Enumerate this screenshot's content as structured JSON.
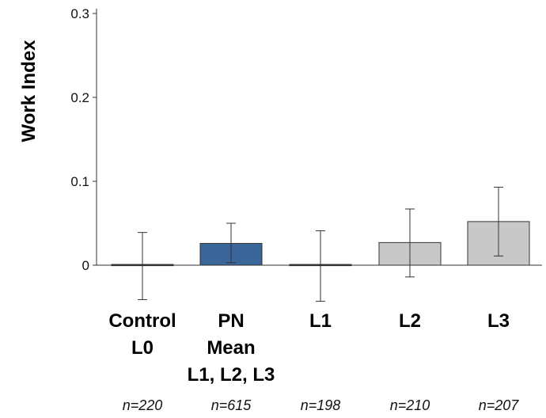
{
  "chart_data": {
    "type": "bar",
    "title": "",
    "xlabel": "",
    "ylabel": "Work Index",
    "ylim": [
      0,
      0.3
    ],
    "yticks": [
      0,
      0.1,
      0.2,
      0.3
    ],
    "ytick_labels": [
      "0",
      "0.1",
      "0.2",
      "0.3"
    ],
    "grid": false,
    "categories": [
      {
        "lines": [
          "Control",
          "L0"
        ],
        "n": "n=220"
      },
      {
        "lines": [
          "PN",
          "Mean",
          "L1, L2, L3"
        ],
        "n": "n=615"
      },
      {
        "lines": [
          "L1"
        ],
        "n": "n=198"
      },
      {
        "lines": [
          "L2"
        ],
        "n": "n=210"
      },
      {
        "lines": [
          "L3"
        ],
        "n": "n=207"
      }
    ],
    "values": [
      0.0,
      0.026,
      0.0,
      0.027,
      0.052
    ],
    "error_low": [
      -0.041,
      0.003,
      -0.043,
      -0.014,
      0.011
    ],
    "error_high": [
      0.039,
      0.05,
      0.041,
      0.067,
      0.093
    ],
    "bar_colors": [
      "#c8c8c8",
      "#3a669a",
      "#c8c8c8",
      "#c8c8c8",
      "#c8c8c8"
    ]
  }
}
